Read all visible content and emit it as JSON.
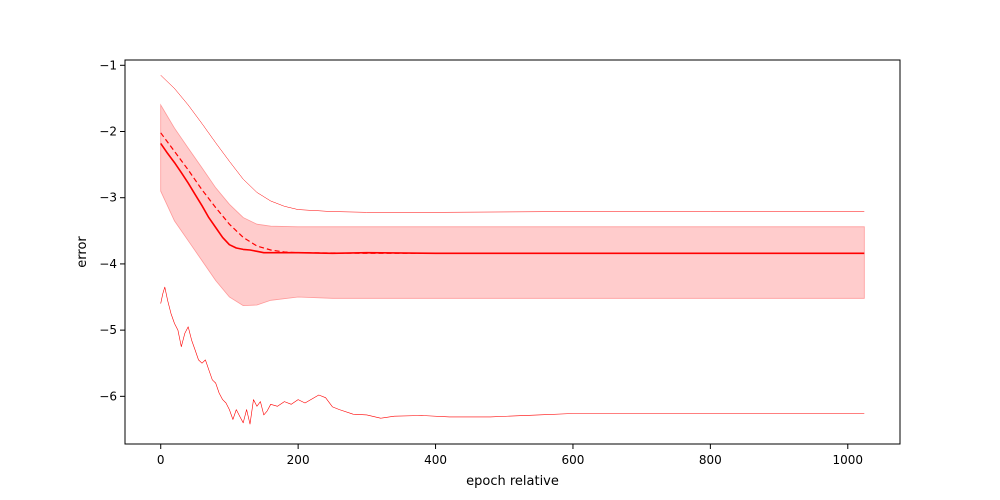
{
  "chart_data": {
    "type": "line",
    "title": "",
    "xlabel": "epoch relative",
    "ylabel": "error",
    "xlim": [
      -52,
      1076
    ],
    "ylim": [
      -6.72,
      -0.92
    ],
    "x_ticks": [
      0,
      200,
      400,
      600,
      800,
      1000
    ],
    "x_tick_labels": [
      "0",
      "200",
      "400",
      "600",
      "800",
      "1000"
    ],
    "y_ticks": [
      -1,
      -2,
      -3,
      -4,
      -5,
      -6
    ],
    "y_tick_labels": [
      "−1",
      "−2",
      "−3",
      "−4",
      "−5",
      "−6"
    ],
    "grid": false,
    "legend": "none",
    "color": "#ff0000",
    "band_color": "#ff9999",
    "band": {
      "x": [
        0,
        20,
        40,
        60,
        80,
        100,
        120,
        140,
        160,
        200,
        250,
        300,
        400,
        600,
        800,
        1024
      ],
      "upper": [
        -1.6,
        -1.95,
        -2.25,
        -2.55,
        -2.85,
        -3.1,
        -3.3,
        -3.4,
        -3.43,
        -3.44,
        -3.44,
        -3.44,
        -3.44,
        -3.44,
        -3.44,
        -3.44
      ],
      "lower": [
        -2.9,
        -3.35,
        -3.65,
        -3.95,
        -4.25,
        -4.5,
        -4.63,
        -4.62,
        -4.55,
        -4.5,
        -4.52,
        -4.52,
        -4.52,
        -4.52,
        -4.52,
        -4.52
      ]
    },
    "series": [
      {
        "style": "solid",
        "x": [
          0,
          10,
          20,
          30,
          40,
          50,
          60,
          70,
          80,
          90,
          100,
          110,
          120,
          130,
          140,
          150,
          160,
          180,
          200,
          250,
          300,
          400,
          600,
          800,
          1024
        ],
        "values": [
          -2.18,
          -2.33,
          -2.47,
          -2.62,
          -2.78,
          -2.95,
          -3.12,
          -3.3,
          -3.45,
          -3.6,
          -3.71,
          -3.76,
          -3.78,
          -3.79,
          -3.81,
          -3.83,
          -3.83,
          -3.83,
          -3.83,
          -3.84,
          -3.83,
          -3.84,
          -3.84,
          -3.84,
          -3.84
        ]
      },
      {
        "style": "dashed",
        "x": [
          0,
          20,
          40,
          60,
          80,
          100,
          120,
          140,
          160,
          180,
          200,
          300,
          400,
          600,
          800,
          1024
        ],
        "values": [
          -2.02,
          -2.3,
          -2.58,
          -2.88,
          -3.15,
          -3.4,
          -3.6,
          -3.73,
          -3.79,
          -3.82,
          -3.83,
          -3.84,
          -3.84,
          -3.84,
          -3.84,
          -3.84
        ]
      },
      {
        "style": "thin",
        "x": [
          0,
          20,
          40,
          60,
          80,
          100,
          120,
          140,
          160,
          180,
          200,
          250,
          300,
          400,
          600,
          800,
          1024
        ],
        "values": [
          -1.15,
          -1.35,
          -1.6,
          -1.88,
          -2.17,
          -2.45,
          -2.72,
          -2.92,
          -3.05,
          -3.13,
          -3.18,
          -3.21,
          -3.22,
          -3.22,
          -3.21,
          -3.21,
          -3.21
        ]
      },
      {
        "style": "noisy",
        "x": [
          0,
          3,
          6,
          10,
          15,
          20,
          25,
          30,
          35,
          40,
          45,
          50,
          55,
          60,
          65,
          70,
          75,
          80,
          85,
          90,
          95,
          100,
          105,
          110,
          115,
          120,
          125,
          130,
          135,
          140,
          145,
          150,
          155,
          160,
          170,
          180,
          190,
          200,
          210,
          220,
          230,
          240,
          250,
          260,
          280,
          300,
          320,
          340,
          380,
          420,
          480,
          550,
          600,
          700,
          800,
          900,
          1024
        ],
        "values": [
          -4.6,
          -4.45,
          -4.35,
          -4.55,
          -4.75,
          -4.9,
          -5.0,
          -5.25,
          -5.05,
          -4.95,
          -5.15,
          -5.3,
          -5.45,
          -5.5,
          -5.45,
          -5.6,
          -5.75,
          -5.8,
          -5.95,
          -6.05,
          -6.1,
          -6.2,
          -6.35,
          -6.2,
          -6.3,
          -6.4,
          -6.2,
          -6.42,
          -6.05,
          -6.15,
          -6.08,
          -6.28,
          -6.22,
          -6.12,
          -6.15,
          -6.08,
          -6.12,
          -6.05,
          -6.1,
          -6.04,
          -5.98,
          -6.02,
          -6.16,
          -6.2,
          -6.27,
          -6.28,
          -6.33,
          -6.3,
          -6.29,
          -6.31,
          -6.31,
          -6.28,
          -6.26,
          -6.26,
          -6.26,
          -6.26,
          -6.26
        ]
      }
    ]
  }
}
